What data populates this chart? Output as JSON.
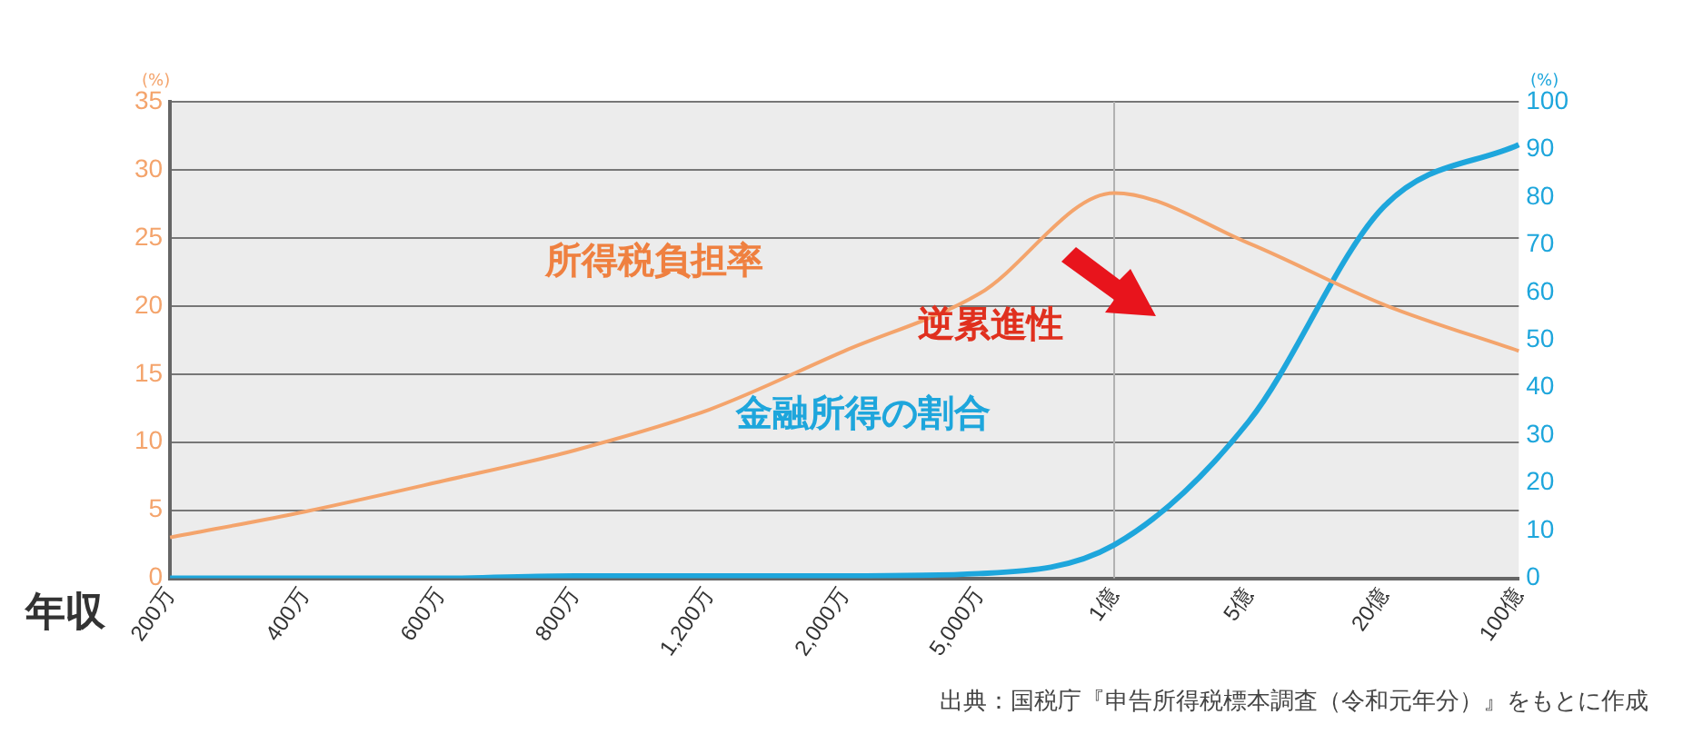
{
  "chart_data": {
    "type": "line",
    "xlabel": "年収",
    "ylabel": "(%)",
    "y2label": "(%)",
    "categories": [
      "200万",
      "400万",
      "600万",
      "800万",
      "1,200万",
      "2,000万",
      "5,000万",
      "1億",
      "5億",
      "20億",
      "100億"
    ],
    "series": [
      {
        "name": "所得税負担率",
        "color": "#f4a46c",
        "values": [
          3.0,
          4.9,
          7.1,
          9.4,
          12.4,
          16.7,
          20.9,
          28.3,
          24.6,
          20.1,
          16.7
        ]
      },
      {
        "name": "金融所得の割合",
        "color": "#1ea6dc",
        "axis": "y2",
        "values": [
          0,
          0,
          0,
          0.5,
          0.5,
          0.5,
          1,
          7,
          33,
          78,
          91
        ]
      }
    ],
    "ylim": [
      0,
      35
    ],
    "yticks": [
      0,
      5,
      10,
      15,
      20,
      25,
      30,
      35
    ],
    "y2lim": [
      0,
      100
    ],
    "y2ticks": [
      0,
      10,
      20,
      30,
      40,
      50,
      60,
      70,
      80,
      90,
      100
    ],
    "grid": "y",
    "legend": false,
    "marker": "none",
    "line_style": "solid",
    "ref_lines": [
      {
        "axis": "x",
        "value": "1億",
        "color": "#b0b0b0"
      }
    ],
    "annotations": [
      "逆累進性",
      "出典：国税庁『申告所得税標本調査（令和元年分）』をもとに作成"
    ]
  }
}
